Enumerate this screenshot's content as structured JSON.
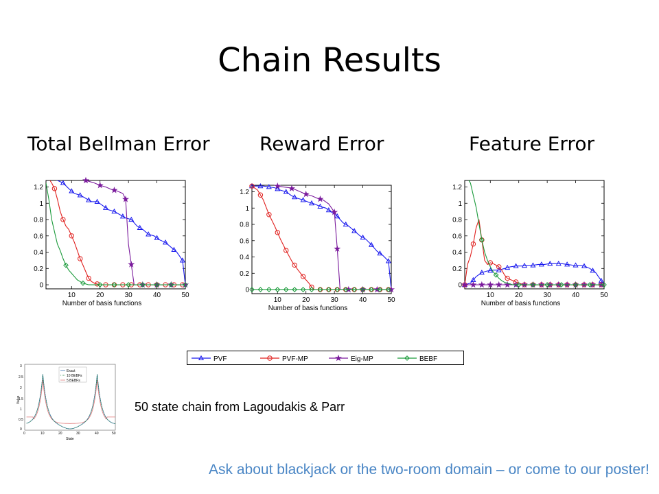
{
  "title": "Chain Results",
  "panel_titles": [
    "Total Bellman Error",
    "Reward Error",
    "Feature Error"
  ],
  "legend_labels": [
    "PVF",
    "PVF-MP",
    "Eig-MP",
    "BEBF"
  ],
  "caption": "50 state chain from Lagoudakis & Parr",
  "footer": "Ask about blackjack or the two-room domain – or come to our poster!",
  "colors": {
    "PVF": "#1a1aee",
    "PVF-MP": "#e0201e",
    "Eig-MP": "#7a1a9c",
    "BEBF": "#1a9a3a",
    "footer": "#4a86c5"
  },
  "chart_data": [
    {
      "type": "line",
      "xlabel": "Number of basis functions",
      "ylabel": "",
      "xlim": [
        1,
        50
      ],
      "ylim": [
        -0.05,
        1.28
      ],
      "xticks": [
        10,
        20,
        30,
        40,
        50
      ],
      "yticks": [
        0,
        0.2,
        0.4,
        0.6,
        0.8,
        1,
        1.2
      ],
      "yticklabels": [
        "0",
        "0.2",
        "0.4",
        "0.6",
        "0.8",
        "1",
        "1.2"
      ],
      "series": [
        {
          "name": "PVF",
          "marker": "triangle",
          "x": [
            1,
            3,
            5,
            7,
            9,
            11,
            13,
            15,
            17,
            19,
            21,
            23,
            25,
            27,
            29,
            31,
            33,
            35,
            37,
            39,
            41,
            43,
            45,
            47,
            49,
            50
          ],
          "y": [
            1.3,
            1.3,
            1.28,
            1.25,
            1.18,
            1.12,
            1.1,
            1.06,
            1.02,
            1.02,
            0.97,
            0.92,
            0.9,
            0.86,
            0.82,
            0.8,
            0.72,
            0.68,
            0.62,
            0.6,
            0.55,
            0.52,
            0.46,
            0.4,
            0.3,
            0.0
          ]
        },
        {
          "name": "PVF-MP",
          "marker": "circle",
          "x": [
            1,
            2,
            3,
            4,
            5,
            6,
            7,
            8,
            9,
            10,
            11,
            12,
            13,
            14,
            15,
            16,
            17,
            18,
            20,
            25,
            30,
            35,
            40,
            45,
            50
          ],
          "y": [
            1.3,
            1.3,
            1.25,
            1.18,
            1.05,
            0.9,
            0.8,
            0.72,
            0.68,
            0.6,
            0.52,
            0.42,
            0.32,
            0.24,
            0.16,
            0.08,
            0.04,
            0.02,
            0.0,
            0.0,
            0.0,
            0.0,
            0.0,
            0.0,
            0.0
          ]
        },
        {
          "name": "Eig-MP",
          "marker": "star",
          "x": [
            10,
            12,
            14,
            16,
            18,
            20,
            22,
            24,
            26,
            28,
            29,
            30,
            32,
            35,
            40,
            45,
            50
          ],
          "y": [
            1.31,
            1.3,
            1.29,
            1.27,
            1.25,
            1.22,
            1.2,
            1.17,
            1.15,
            1.12,
            1.05,
            0.5,
            0.0,
            0.0,
            0.0,
            0.0,
            0.0
          ],
          "marker_x": [
            10,
            15,
            20,
            25,
            29,
            31,
            35,
            40,
            45,
            50
          ]
        },
        {
          "name": "BEBF",
          "marker": "diamond",
          "x": [
            1,
            2,
            3,
            4,
            5,
            6,
            7,
            8,
            9,
            10,
            11,
            12,
            13,
            14,
            15,
            16,
            17,
            18,
            20,
            25,
            30,
            35,
            40,
            45,
            50
          ],
          "y": [
            1.25,
            1.05,
            0.8,
            0.65,
            0.5,
            0.42,
            0.32,
            0.24,
            0.18,
            0.14,
            0.1,
            0.06,
            0.04,
            0.02,
            0.01,
            0.0,
            0.0,
            0.0,
            0.0,
            0.0,
            0.0,
            0.0,
            0.0,
            0.0,
            0.0
          ],
          "marker_x": [
            8,
            14,
            20,
            25,
            30,
            35,
            40,
            45,
            50
          ]
        }
      ]
    },
    {
      "type": "line",
      "xlabel": "Number of basis functions",
      "ylabel": "",
      "xlim": [
        1,
        50
      ],
      "ylim": [
        -0.05,
        1.28
      ],
      "xticks": [
        10,
        20,
        30,
        40,
        50
      ],
      "yticks": [
        0,
        0.2,
        0.4,
        0.6,
        0.8,
        1,
        1.2
      ],
      "yticklabels": [
        "0",
        "0.2",
        "0.4",
        "0.6",
        "0.8",
        "1",
        "1.2"
      ],
      "series": [
        {
          "name": "PVF",
          "marker": "triangle",
          "x": [
            1,
            3,
            5,
            7,
            9,
            11,
            13,
            15,
            17,
            19,
            21,
            23,
            25,
            27,
            29,
            31,
            33,
            35,
            37,
            39,
            41,
            43,
            45,
            47,
            49,
            50
          ],
          "y": [
            1.27,
            1.27,
            1.27,
            1.26,
            1.25,
            1.22,
            1.2,
            1.15,
            1.12,
            1.1,
            1.07,
            1.05,
            1.02,
            1.0,
            0.95,
            0.9,
            0.82,
            0.78,
            0.72,
            0.66,
            0.62,
            0.55,
            0.47,
            0.42,
            0.35,
            0.0
          ]
        },
        {
          "name": "PVF-MP",
          "marker": "circle",
          "x": [
            1,
            3,
            5,
            7,
            9,
            11,
            13,
            15,
            17,
            19,
            21,
            22,
            23,
            25,
            30,
            35,
            40,
            45,
            50
          ],
          "y": [
            1.27,
            1.22,
            1.1,
            0.92,
            0.78,
            0.62,
            0.48,
            0.35,
            0.25,
            0.16,
            0.08,
            0.03,
            0.0,
            0.0,
            0.0,
            0.0,
            0.0,
            0.0,
            0.0
          ]
        },
        {
          "name": "Eig-MP",
          "marker": "star",
          "x": [
            10,
            12,
            14,
            16,
            18,
            20,
            22,
            24,
            26,
            28,
            30,
            31,
            32,
            35,
            40,
            45,
            50
          ],
          "y": [
            1.27,
            1.26,
            1.25,
            1.23,
            1.2,
            1.17,
            1.15,
            1.12,
            1.1,
            1.05,
            0.95,
            0.5,
            0.0,
            0.0,
            0.0,
            0.0,
            0.0
          ],
          "marker_x": [
            10,
            15,
            20,
            25,
            30,
            31,
            35,
            40,
            45,
            50
          ]
        },
        {
          "name": "BEBF",
          "marker": "diamond",
          "x": [
            1,
            5,
            10,
            15,
            20,
            25,
            30,
            35,
            40,
            45,
            50
          ],
          "y": [
            0,
            0,
            0,
            0,
            0,
            0,
            0,
            0,
            0,
            0,
            0
          ]
        }
      ]
    },
    {
      "type": "line",
      "xlabel": "Number of basis functions",
      "ylabel": "",
      "xlim": [
        1,
        50
      ],
      "ylim": [
        -0.05,
        1.28
      ],
      "xticks": [
        10,
        20,
        30,
        40,
        50
      ],
      "yticks": [
        0,
        0.2,
        0.4,
        0.6,
        0.8,
        1,
        1.2
      ],
      "yticklabels": [
        "0",
        "0.2",
        "0.4",
        "0.6",
        "0.8",
        "1",
        "1.2"
      ],
      "series": [
        {
          "name": "PVF",
          "marker": "triangle",
          "x": [
            1,
            3,
            5,
            7,
            9,
            11,
            13,
            15,
            17,
            19,
            21,
            23,
            25,
            27,
            29,
            31,
            33,
            35,
            37,
            39,
            41,
            43,
            45,
            47,
            49,
            50
          ],
          "y": [
            0.0,
            0.02,
            0.1,
            0.15,
            0.17,
            0.18,
            0.18,
            0.2,
            0.22,
            0.23,
            0.23,
            0.24,
            0.24,
            0.25,
            0.25,
            0.26,
            0.26,
            0.26,
            0.25,
            0.24,
            0.24,
            0.23,
            0.2,
            0.15,
            0.05,
            0.0
          ]
        },
        {
          "name": "PVF-MP",
          "marker": "circle",
          "x": [
            1,
            2,
            3,
            4,
            5,
            6,
            7,
            8,
            9,
            10,
            11,
            12,
            13,
            14,
            15,
            16,
            18,
            20,
            22,
            25,
            30,
            35,
            40,
            45,
            50
          ],
          "y": [
            0.0,
            0.25,
            0.35,
            0.5,
            0.7,
            0.8,
            0.55,
            0.3,
            0.25,
            0.27,
            0.26,
            0.24,
            0.22,
            0.18,
            0.12,
            0.08,
            0.05,
            0.02,
            0.0,
            0.0,
            0.0,
            0.0,
            0.0,
            0.0,
            0.0
          ]
        },
        {
          "name": "Eig-MP",
          "marker": "star",
          "x": [
            1,
            5,
            10,
            15,
            20,
            25,
            30,
            35,
            40,
            45,
            50
          ],
          "y": [
            0,
            0,
            0,
            0,
            0,
            0,
            0,
            0,
            0,
            0,
            0
          ]
        },
        {
          "name": "BEBF",
          "marker": "diamond",
          "x": [
            1,
            2,
            3,
            4,
            5,
            6,
            7,
            8,
            9,
            10,
            11,
            12,
            13,
            14,
            15,
            16,
            17,
            18,
            20,
            25,
            30,
            35,
            40,
            45,
            50
          ],
          "y": [
            1.3,
            1.3,
            1.25,
            1.1,
            0.95,
            0.75,
            0.55,
            0.4,
            0.3,
            0.22,
            0.16,
            0.12,
            0.08,
            0.05,
            0.03,
            0.02,
            0.01,
            0.0,
            0.0,
            0.0,
            0.0,
            0.0,
            0.0,
            0.0,
            0.0
          ],
          "marker_x": [
            7,
            12,
            20,
            25,
            30,
            35,
            40,
            45,
            50
          ]
        }
      ]
    }
  ],
  "inset": {
    "xlabel": "State",
    "ylabel": "Value",
    "xticks": [
      "0",
      "10",
      "20",
      "30",
      "40",
      "50"
    ],
    "yticks": [
      "0",
      "0.5",
      "1",
      "1.5",
      "2",
      "2.5",
      "3"
    ],
    "legend": [
      "Exact",
      "10 BEBFs",
      "5 BEBFs"
    ]
  }
}
